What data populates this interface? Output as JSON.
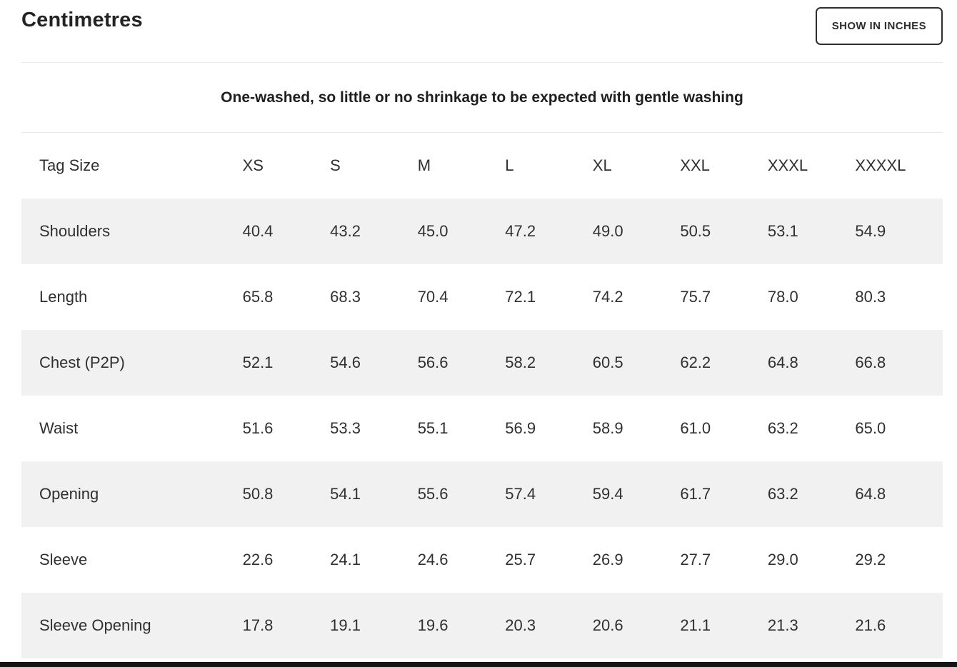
{
  "header": {
    "title": "Centimetres",
    "toggle_button_label": "SHOW IN INCHES"
  },
  "note": "One-washed, so little or no shrinkage to be expected with gentle washing",
  "table": {
    "columns": [
      "Tag Size",
      "XS",
      "S",
      "M",
      "L",
      "XL",
      "XXL",
      "XXXL",
      "XXXXL"
    ],
    "rows": [
      {
        "label": "Shoulders",
        "values": [
          "40.4",
          "43.2",
          "45.0",
          "47.2",
          "49.0",
          "50.5",
          "53.1",
          "54.9"
        ]
      },
      {
        "label": "Length",
        "values": [
          "65.8",
          "68.3",
          "70.4",
          "72.1",
          "74.2",
          "75.7",
          "78.0",
          "80.3"
        ]
      },
      {
        "label": "Chest (P2P)",
        "values": [
          "52.1",
          "54.6",
          "56.6",
          "58.2",
          "60.5",
          "62.2",
          "64.8",
          "66.8"
        ]
      },
      {
        "label": "Waist",
        "values": [
          "51.6",
          "53.3",
          "55.1",
          "56.9",
          "58.9",
          "61.0",
          "63.2",
          "65.0"
        ]
      },
      {
        "label": "Opening",
        "values": [
          "50.8",
          "54.1",
          "55.6",
          "57.4",
          "59.4",
          "61.7",
          "63.2",
          "64.8"
        ]
      },
      {
        "label": "Sleeve",
        "values": [
          "22.6",
          "24.1",
          "24.6",
          "25.7",
          "26.9",
          "27.7",
          "29.0",
          "29.2"
        ]
      },
      {
        "label": "Sleeve Opening",
        "values": [
          "17.8",
          "19.1",
          "19.6",
          "20.3",
          "20.6",
          "21.1",
          "21.3",
          "21.6"
        ]
      }
    ]
  },
  "colors": {
    "text": "#2e2e2e",
    "row_alt_bg": "#f1f1f1",
    "divider": "#e9e9e9",
    "bottom_bar": "#141414"
  }
}
